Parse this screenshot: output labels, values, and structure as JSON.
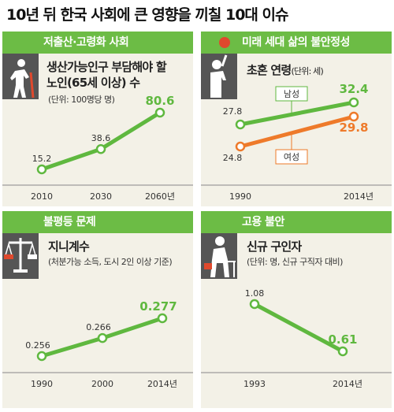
{
  "page_title": "10년 뒤 한국 사회에 큰 영향을 끼칠 10대 이슈",
  "colors": {
    "header_green": "#6cbc45",
    "line_green": "#5fb83f",
    "line_orange": "#ee7a2a",
    "panel_bg": "#f3f1e7"
  },
  "panels": [
    {
      "header": "저출산·고령화 사회",
      "icon": "elderly-person-icon",
      "subtitle": "생산가능인구 부담해야 할",
      "subtitle2": "노인(65세 이상) 수",
      "unit": "(단위: 100명당 명)"
    },
    {
      "header": "미래 세대 삶의 불안정성",
      "icon": "stressed-person-icon",
      "subtitle": "초혼 연령",
      "unit": "(단위: 세)"
    },
    {
      "header": "불평등 문제",
      "icon": "balance-scale-icon",
      "subtitle": "지니계수",
      "unit": "(처분가능 소득, 도시 2인 이상 기준)"
    },
    {
      "header": "고용 불안",
      "icon": "worried-worker-icon",
      "subtitle": "신규 구인자",
      "unit": "(단위: 명, 신규 구직자 대비)"
    }
  ],
  "chart_data": [
    {
      "type": "line",
      "categories": [
        "2010",
        "2030",
        "2060년"
      ],
      "series": [
        {
          "values": [
            15.2,
            38.6,
            80.6
          ]
        }
      ],
      "value_labels": [
        "15.2",
        "38.6",
        "80.6"
      ]
    },
    {
      "type": "line",
      "categories": [
        "1990",
        "2014년"
      ],
      "series": [
        {
          "name": "남성",
          "values": [
            27.8,
            32.4
          ],
          "value_labels": [
            "27.8",
            "32.4"
          ]
        },
        {
          "name": "여성",
          "values": [
            24.8,
            29.8
          ],
          "value_labels": [
            "24.8",
            "29.8"
          ]
        }
      ]
    },
    {
      "type": "line",
      "categories": [
        "1990",
        "2000",
        "2014년"
      ],
      "series": [
        {
          "values": [
            0.256,
            0.266,
            0.277
          ]
        }
      ],
      "value_labels": [
        "0.256",
        "0.266",
        "0.277"
      ]
    },
    {
      "type": "line",
      "categories": [
        "1993",
        "2014년"
      ],
      "series": [
        {
          "values": [
            1.08,
            0.61
          ]
        }
      ],
      "value_labels": [
        "1.08",
        "0.61"
      ]
    }
  ]
}
